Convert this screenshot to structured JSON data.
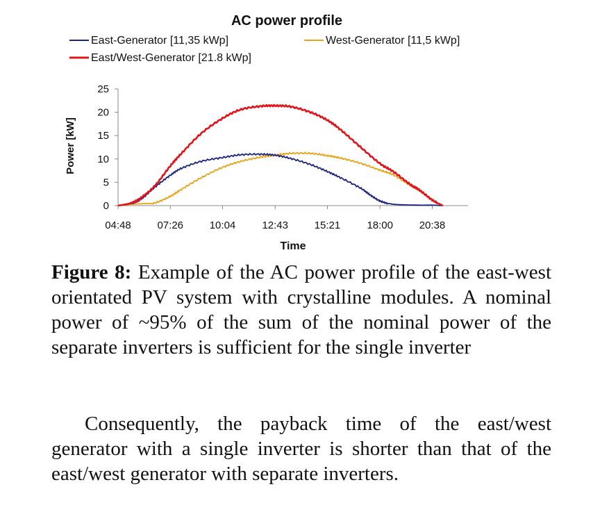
{
  "chart_data": {
    "type": "line",
    "title": "AC power profile",
    "xlabel": "Time",
    "ylabel": "Power [kW]",
    "x_ticks": [
      "04:48",
      "07:26",
      "10:04",
      "12:43",
      "15:21",
      "18:00",
      "20:38"
    ],
    "x_range": [
      "04:48",
      "21:40"
    ],
    "y_ticks": [
      "0",
      "5",
      "10",
      "15",
      "20",
      "25"
    ],
    "ylim": [
      0,
      25
    ],
    "grid": false,
    "legend_position": "top",
    "series": [
      {
        "name": "East-Generator [11,35 kWp]",
        "color": "#1a237e",
        "points": [
          [
            "04:48",
            0
          ],
          [
            "05:30",
            0.5
          ],
          [
            "06:00",
            1.5
          ],
          [
            "06:40",
            4
          ],
          [
            "07:26",
            6.5
          ],
          [
            "08:00",
            8
          ],
          [
            "09:00",
            9.5
          ],
          [
            "10:04",
            10.3
          ],
          [
            "11:00",
            10.9
          ],
          [
            "12:00",
            11.0
          ],
          [
            "12:43",
            10.8
          ],
          [
            "13:30",
            10.1
          ],
          [
            "14:30",
            8.8
          ],
          [
            "15:21",
            7.3
          ],
          [
            "16:00",
            6.0
          ],
          [
            "17:00",
            3.8
          ],
          [
            "17:30",
            2.3
          ],
          [
            "18:00",
            1.0
          ],
          [
            "18:30",
            0.4
          ],
          [
            "19:00",
            0.2
          ],
          [
            "20:00",
            0.1
          ],
          [
            "20:38",
            0.1
          ],
          [
            "21:10",
            0
          ]
        ]
      },
      {
        "name": "West-Generator [11,5 kWp]",
        "color": "#e8a317",
        "points": [
          [
            "04:48",
            0
          ],
          [
            "05:30",
            0.3
          ],
          [
            "06:00",
            0.4
          ],
          [
            "06:40",
            0.6
          ],
          [
            "07:26",
            2
          ],
          [
            "08:00",
            3.5
          ],
          [
            "09:00",
            6
          ],
          [
            "10:04",
            8.2
          ],
          [
            "11:00",
            9.5
          ],
          [
            "12:00",
            10.4
          ],
          [
            "12:43",
            10.8
          ],
          [
            "13:30",
            11.2
          ],
          [
            "14:30",
            11.2
          ],
          [
            "15:21",
            10.7
          ],
          [
            "16:00",
            10.2
          ],
          [
            "17:00",
            9.1
          ],
          [
            "18:00",
            7.6
          ],
          [
            "18:40",
            6.6
          ],
          [
            "19:30",
            4.4
          ],
          [
            "20:00",
            3.2
          ],
          [
            "20:38",
            1.2
          ],
          [
            "21:10",
            0
          ]
        ]
      },
      {
        "name": "East/West-Generator [21.8 kWp]",
        "color": "#e0141b",
        "points": [
          [
            "04:48",
            0
          ],
          [
            "05:30",
            0.6
          ],
          [
            "06:00",
            1.8
          ],
          [
            "06:40",
            4.3
          ],
          [
            "07:26",
            8.5
          ],
          [
            "08:00",
            11.2
          ],
          [
            "09:00",
            15.5
          ],
          [
            "10:04",
            18.7
          ],
          [
            "11:00",
            20.6
          ],
          [
            "12:00",
            21.3
          ],
          [
            "12:43",
            21.4
          ],
          [
            "13:30",
            21.2
          ],
          [
            "14:30",
            20.0
          ],
          [
            "15:21",
            18.3
          ],
          [
            "16:00",
            16.3
          ],
          [
            "17:00",
            12.6
          ],
          [
            "18:00",
            9.0
          ],
          [
            "18:40",
            7.3
          ],
          [
            "19:30",
            4.6
          ],
          [
            "20:00",
            3.3
          ],
          [
            "20:38",
            1.2
          ],
          [
            "21:10",
            0
          ]
        ]
      }
    ]
  },
  "caption": {
    "label": "Figure 8:",
    "text": "Example of the AC power profile of the east-west orientated PV system with crystalline modules. A nominal power of ~95% of the sum of the nominal power of the separate inverters is sufficient for the single inverter"
  },
  "paragraph": "Consequently, the payback time of the east/west generator with a single inverter is shorter than that of the east/west generator with separate inverters."
}
